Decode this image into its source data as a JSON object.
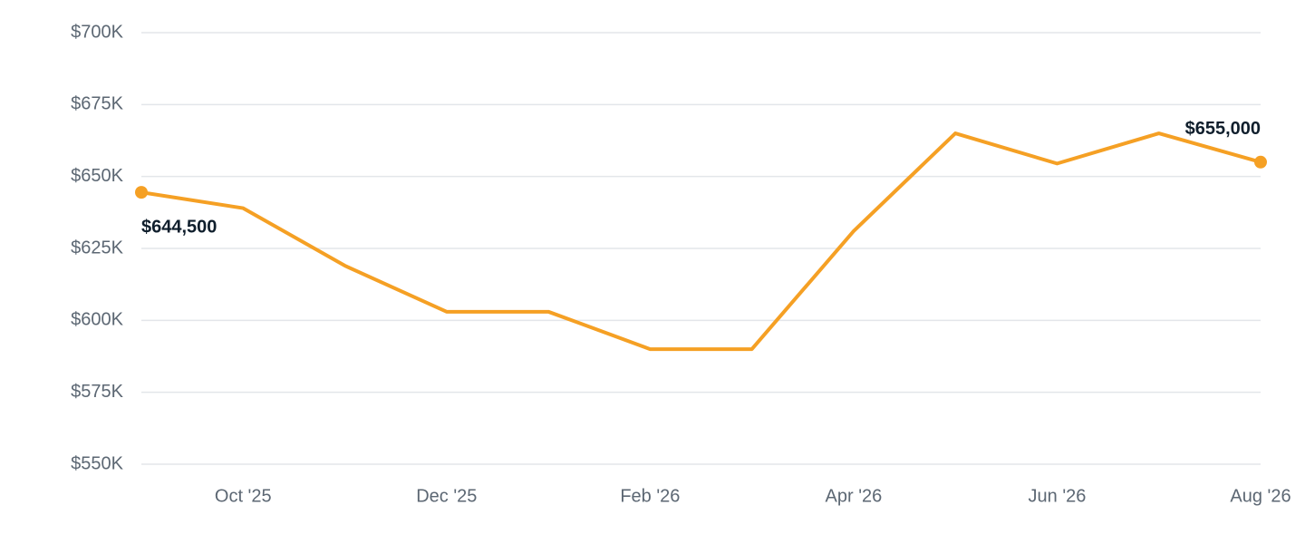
{
  "chart_data": {
    "type": "line",
    "categories": [
      null,
      "Oct '25",
      null,
      "Dec '25",
      null,
      "Feb '26",
      null,
      "Apr '26",
      null,
      "Jun '26",
      null,
      "Aug '26"
    ],
    "series": [
      {
        "color": "#f5a024",
        "values": [
          644500,
          639000,
          619000,
          603000,
          603000,
          590000,
          590000,
          631000,
          665000,
          654500,
          665000,
          655000
        ],
        "value_labels": [
          "$644,500",
          null,
          null,
          null,
          null,
          null,
          null,
          null,
          null,
          null,
          null,
          "$655,000"
        ]
      }
    ],
    "ylim": [
      550000,
      700000
    ],
    "yticks": [
      {
        "value": 550000,
        "label": "$550K"
      },
      {
        "value": 575000,
        "label": "$575K"
      },
      {
        "value": 600000,
        "label": "$600K"
      },
      {
        "value": 625000,
        "label": "$625K"
      },
      {
        "value": 650000,
        "label": "$650K"
      },
      {
        "value": 675000,
        "label": "$675K"
      },
      {
        "value": 700000,
        "label": "$700K"
      }
    ],
    "grid": true
  }
}
